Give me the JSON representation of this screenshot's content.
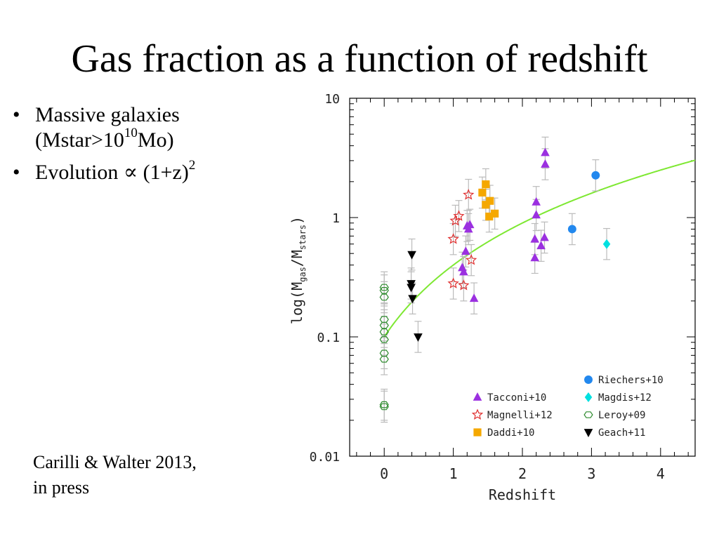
{
  "slide": {
    "title": "Gas fraction as a function of redshift",
    "bullets": [
      {
        "text": "Massive galaxies (Mstar>10",
        "sup": "10",
        "tail": "Mo)"
      },
      {
        "text": "Evolution ∝ (1+z)",
        "sup": "2",
        "tail": ""
      }
    ],
    "citation_line1": "Carilli & Walter 2013,",
    "citation_line2": "in press"
  },
  "chart_data": {
    "type": "scatter",
    "xlabel": "Redshift",
    "ylabel_parts": [
      "log(M",
      "gas",
      "/M",
      "stars",
      ")"
    ],
    "xlim": [
      -0.5,
      4.5
    ],
    "ylim": [
      0.01,
      10
    ],
    "yscale": "log",
    "x_ticks": [
      0,
      1,
      2,
      3,
      4
    ],
    "y_ticks": [
      {
        "value": 0.01,
        "label": "0.01"
      },
      {
        "value": 0.1,
        "label": "0.1"
      },
      {
        "value": 1,
        "label": "1"
      },
      {
        "value": 10,
        "label": "10"
      }
    ],
    "legend_position": "bottom-right",
    "series": [
      {
        "name": "Tacconi+10",
        "marker": "triangle-up",
        "color": "#9b30e0",
        "points": [
          [
            1.15,
            0.35
          ],
          [
            1.13,
            0.38
          ],
          [
            1.18,
            0.52
          ],
          [
            1.2,
            0.85
          ],
          [
            1.22,
            0.8
          ],
          [
            1.24,
            0.87
          ],
          [
            1.3,
            0.21
          ],
          [
            2.18,
            0.66
          ],
          [
            2.2,
            1.05
          ],
          [
            2.2,
            1.35
          ],
          [
            2.18,
            0.46
          ],
          [
            2.27,
            0.58
          ],
          [
            2.32,
            0.68
          ],
          [
            2.33,
            2.8
          ],
          [
            2.33,
            3.5
          ]
        ]
      },
      {
        "name": "Magnelli+12",
        "marker": "star-open",
        "color": "#e03030",
        "points": [
          [
            1.0,
            0.66
          ],
          [
            1.03,
            0.94
          ],
          [
            1.08,
            1.03
          ],
          [
            1.22,
            1.55
          ],
          [
            1.26,
            0.44
          ],
          [
            1.0,
            0.28
          ],
          [
            1.15,
            0.27
          ]
        ]
      },
      {
        "name": "Daddi+10",
        "marker": "square",
        "color": "#f5a800",
        "points": [
          [
            1.42,
            1.62
          ],
          [
            1.47,
            1.9
          ],
          [
            1.47,
            1.28
          ],
          [
            1.53,
            1.38
          ],
          [
            1.52,
            1.02
          ],
          [
            1.6,
            1.08
          ]
        ]
      },
      {
        "name": "Riechers+10",
        "marker": "circle",
        "color": "#2288ee",
        "points": [
          [
            2.72,
            0.8
          ],
          [
            3.06,
            2.26
          ]
        ]
      },
      {
        "name": "Magdis+12",
        "marker": "diamond",
        "color": "#00e0e0",
        "points": [
          [
            3.22,
            0.6
          ]
        ]
      },
      {
        "name": "Leroy+09",
        "marker": "hexagon-open",
        "color": "#2e8b2e",
        "points": [
          [
            0,
            0.26
          ],
          [
            0,
            0.245
          ],
          [
            0,
            0.215
          ],
          [
            0,
            0.14
          ],
          [
            0,
            0.125
          ],
          [
            0,
            0.11
          ],
          [
            0,
            0.095
          ],
          [
            0,
            0.073
          ],
          [
            0,
            0.065
          ],
          [
            0,
            0.027
          ],
          [
            0,
            0.026
          ]
        ]
      },
      {
        "name": "Geach+11",
        "marker": "triangle-down",
        "color": "#000000",
        "points": [
          [
            0.4,
            0.49
          ],
          [
            0.39,
            0.28
          ],
          [
            0.39,
            0.26
          ],
          [
            0.41,
            0.21
          ],
          [
            0.49,
            0.1
          ]
        ]
      }
    ],
    "legend_left": [
      "Tacconi+10",
      "Magnelli+12",
      "Daddi+10"
    ],
    "legend_right": [
      "Riechers+10",
      "Magdis+12",
      "Leroy+09",
      "Geach+11"
    ],
    "curve": {
      "description": "(1+z)^2 scaling",
      "coefficient": 0.1,
      "exponent": 2,
      "color": "#7ee832"
    }
  }
}
